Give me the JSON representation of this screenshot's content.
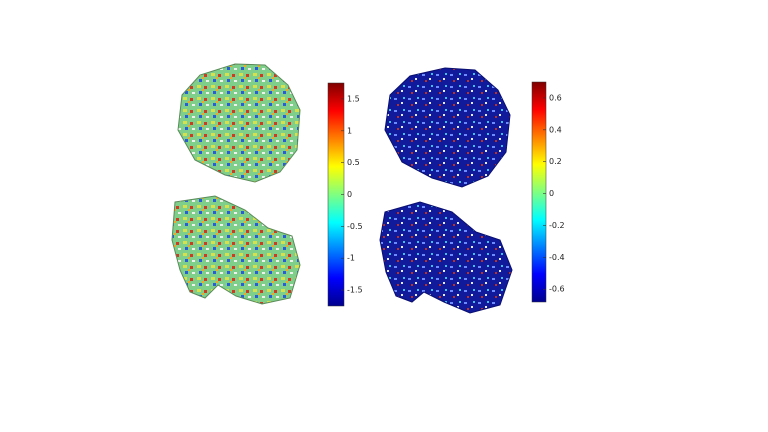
{
  "colorbars": [
    {
      "lim": [
        -1.75,
        1.75
      ],
      "ticks": [
        1.5,
        1,
        0.5,
        0,
        -0.5,
        -1,
        -1.5
      ]
    },
    {
      "lim": [
        -0.68,
        0.7
      ],
      "ticks": [
        0.6,
        0.4,
        0.2,
        0,
        -0.2,
        -0.4,
        -0.6
      ]
    }
  ]
}
